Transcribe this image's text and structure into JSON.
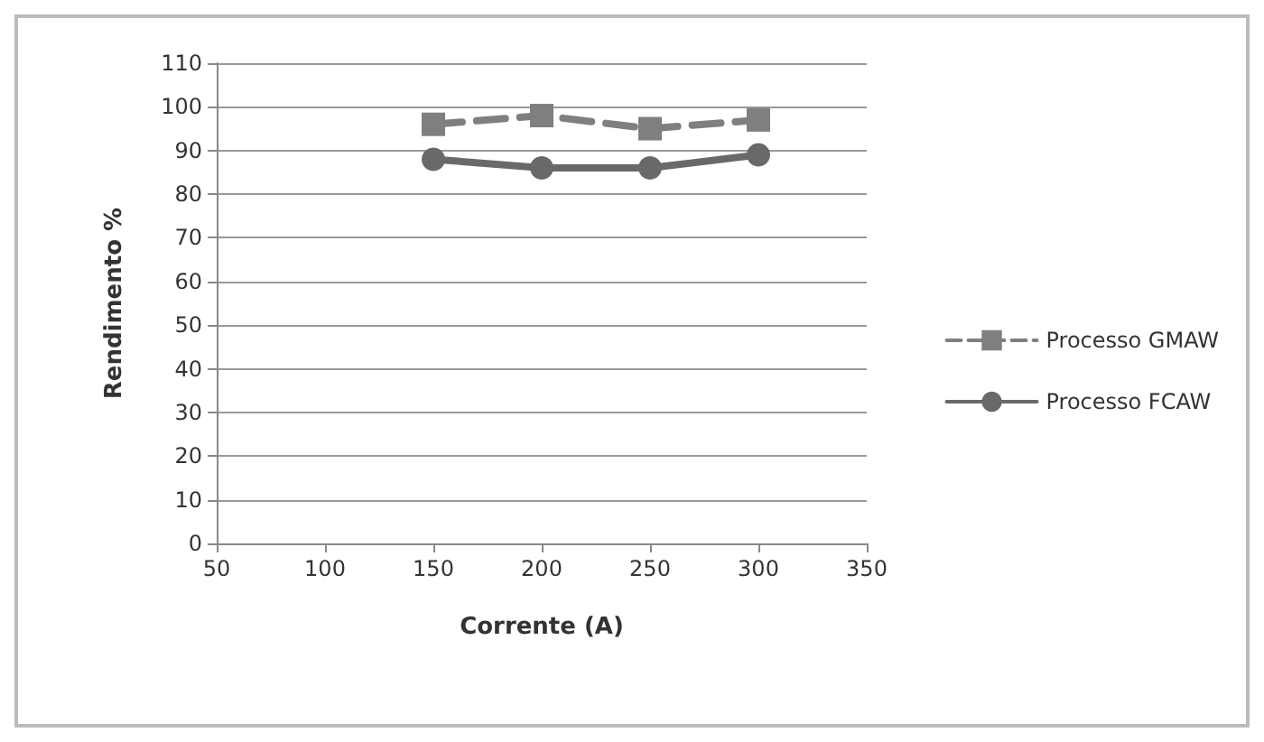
{
  "chart_data": {
    "type": "line",
    "xlabel": "Corrente (A)",
    "ylabel": "Rendimento %",
    "x": [
      150,
      200,
      250,
      300
    ],
    "series": [
      {
        "name": "Processo GMAW",
        "color": "#7f7f7f",
        "values": [
          96,
          98,
          95,
          97
        ],
        "marker": "square",
        "line_style": "dashed"
      },
      {
        "name": "Processo FCAW",
        "color": "#696969",
        "values": [
          88,
          86,
          86,
          89
        ],
        "marker": "circle",
        "line_style": "solid"
      }
    ],
    "xlim": [
      50,
      350
    ],
    "xticks": [
      50,
      100,
      150,
      200,
      250,
      300,
      350
    ],
    "ylim": [
      0,
      110
    ],
    "yticks": [
      0,
      10,
      20,
      30,
      40,
      50,
      60,
      70,
      80,
      90,
      100,
      110
    ],
    "grid": "y",
    "legend": "right"
  }
}
